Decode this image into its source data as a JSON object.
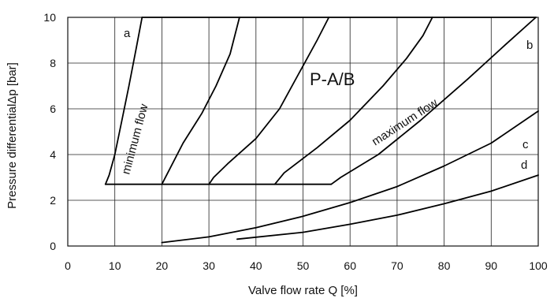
{
  "chart_data": {
    "type": "line",
    "title": "P-A/B",
    "xlabel": "Valve flow rate Q [%]",
    "ylabel": "Pressure differentialΔp [bar]",
    "xlim": [
      0,
      100
    ],
    "ylim": [
      0,
      10
    ],
    "x_ticks": [
      "0",
      "10",
      "20",
      "30",
      "40",
      "50",
      "60",
      "70",
      "80",
      "90",
      "100"
    ],
    "y_ticks": [
      "0",
      "2",
      "4",
      "6",
      "8",
      "10"
    ],
    "grid": true,
    "annotations": {
      "minimum_flow": "minimum   flow",
      "maximum_flow": "maximum   flow",
      "label_a": "a",
      "label_b": "b",
      "label_c": "c",
      "label_d": "d"
    },
    "series": [
      {
        "name": "a",
        "points": [
          [
            8,
            2.7
          ],
          [
            8.8,
            3.1
          ],
          [
            10,
            4
          ],
          [
            11.5,
            5.5
          ],
          [
            13,
            7
          ],
          [
            14.5,
            8.6
          ],
          [
            15.8,
            10
          ]
        ]
      },
      {
        "name": "",
        "points": [
          [
            20,
            2.7
          ],
          [
            21,
            3.1
          ],
          [
            24.5,
            4.5
          ],
          [
            28.5,
            5.8
          ],
          [
            31.5,
            7
          ],
          [
            34.5,
            8.4
          ],
          [
            36.5,
            10
          ]
        ]
      },
      {
        "name": "",
        "points": [
          [
            30,
            2.7
          ],
          [
            31,
            3
          ],
          [
            34,
            3.6
          ],
          [
            40,
            4.7
          ],
          [
            45,
            6
          ],
          [
            49,
            7.5
          ],
          [
            53,
            9
          ],
          [
            55.5,
            10
          ]
        ]
      },
      {
        "name": "",
        "points": [
          [
            44,
            2.7
          ],
          [
            46,
            3.2
          ],
          [
            53,
            4.3
          ],
          [
            60,
            5.5
          ],
          [
            67,
            7
          ],
          [
            72,
            8.2
          ],
          [
            75.5,
            9.2
          ],
          [
            77.5,
            10
          ]
        ]
      },
      {
        "name": "b",
        "points": [
          [
            56,
            2.7
          ],
          [
            58,
            3
          ],
          [
            66,
            4
          ],
          [
            75,
            5.5
          ],
          [
            85,
            7.3
          ],
          [
            93,
            8.8
          ],
          [
            99.5,
            10
          ]
        ]
      },
      {
        "name": "c",
        "points": [
          [
            20,
            0.15
          ],
          [
            30,
            0.4
          ],
          [
            40,
            0.8
          ],
          [
            50,
            1.3
          ],
          [
            60,
            1.9
          ],
          [
            70,
            2.6
          ],
          [
            80,
            3.5
          ],
          [
            90,
            4.5
          ],
          [
            100,
            5.9
          ]
        ]
      },
      {
        "name": "d",
        "points": [
          [
            36,
            0.3
          ],
          [
            50,
            0.6
          ],
          [
            60,
            0.95
          ],
          [
            70,
            1.35
          ],
          [
            80,
            1.85
          ],
          [
            90,
            2.4
          ],
          [
            100,
            3.1
          ]
        ]
      },
      {
        "name": "",
        "points": [
          [
            8,
            2.7
          ],
          [
            56,
            2.7
          ]
        ]
      },
      {
        "name": "",
        "points": [
          [
            15.8,
            10
          ],
          [
            99.5,
            10
          ]
        ]
      }
    ]
  }
}
